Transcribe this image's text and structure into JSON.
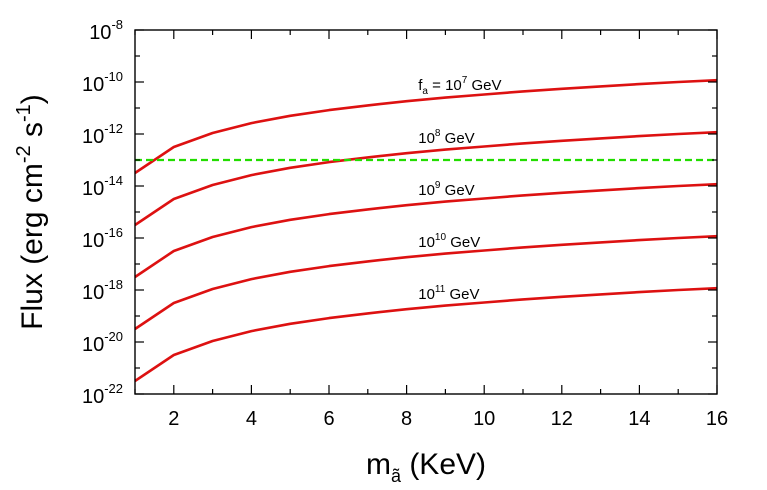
{
  "chart_data": {
    "type": "line",
    "title": "",
    "xlabel": "m",
    "xlabel_subscript": "ã",
    "xlabel_units": "(KeV)",
    "ylabel": "Flux (erg cm",
    "ylabel_exp1": "-2",
    "ylabel_mid": " s",
    "ylabel_exp2": "-1",
    "ylabel_end": ")",
    "xlim": [
      1,
      16
    ],
    "ylim_log10": [
      -22,
      -8
    ],
    "y_scale": "log",
    "grid": false,
    "x_ticks": [
      "2",
      "4",
      "6",
      "8",
      "10",
      "12",
      "14",
      "16"
    ],
    "x_tick_values": [
      2,
      4,
      6,
      8,
      10,
      12,
      14,
      16
    ],
    "y_ticks": [
      {
        "base": "10",
        "exp": "-8",
        "value": -8
      },
      {
        "base": "10",
        "exp": "-10",
        "value": -10
      },
      {
        "base": "10",
        "exp": "-12",
        "value": -12
      },
      {
        "base": "10",
        "exp": "-14",
        "value": -14
      },
      {
        "base": "10",
        "exp": "-16",
        "value": -16
      },
      {
        "base": "10",
        "exp": "-18",
        "value": -18
      },
      {
        "base": "10",
        "exp": "-20",
        "value": -20
      },
      {
        "base": "10",
        "exp": "-22",
        "value": -22
      }
    ],
    "x": [
      1,
      2,
      3,
      4,
      5,
      6,
      7,
      8,
      9,
      10,
      11,
      12,
      13,
      14,
      15,
      16
    ],
    "series": [
      {
        "label_prefix": "f",
        "label_sub": "a",
        "label_mid": " = 10",
        "label_exp": "7",
        "label_suffix": " GeV",
        "label_at_x": 8.3,
        "label_at_log10": -10.3,
        "color": "#dd1111",
        "log10_values": [
          -13.5,
          -12.5,
          -11.96,
          -11.58,
          -11.3,
          -11.08,
          -10.9,
          -10.74,
          -10.6,
          -10.48,
          -10.36,
          -10.26,
          -10.17,
          -10.08,
          -10.0,
          -9.93
        ]
      },
      {
        "label_prefix": "",
        "label_sub": "",
        "label_mid": "10",
        "label_exp": "8",
        "label_suffix": " GeV",
        "label_at_x": 8.3,
        "label_at_log10": -12.35,
        "color": "#dd1111",
        "log10_values": [
          -15.5,
          -14.5,
          -13.96,
          -13.58,
          -13.3,
          -13.08,
          -12.9,
          -12.74,
          -12.6,
          -12.48,
          -12.36,
          -12.26,
          -12.17,
          -12.08,
          -12.0,
          -11.93
        ]
      },
      {
        "label_prefix": "",
        "label_sub": "",
        "label_mid": "10",
        "label_exp": "9",
        "label_suffix": " GeV",
        "label_at_x": 8.3,
        "label_at_log10": -14.35,
        "color": "#dd1111",
        "log10_values": [
          -17.5,
          -16.5,
          -15.96,
          -15.58,
          -15.3,
          -15.08,
          -14.9,
          -14.74,
          -14.6,
          -14.48,
          -14.36,
          -14.26,
          -14.17,
          -14.08,
          -14.0,
          -13.93
        ]
      },
      {
        "label_prefix": "",
        "label_sub": "",
        "label_mid": "10",
        "label_exp": "10",
        "label_suffix": " GeV",
        "label_at_x": 8.3,
        "label_at_log10": -16.35,
        "color": "#dd1111",
        "log10_values": [
          -19.5,
          -18.5,
          -17.96,
          -17.58,
          -17.3,
          -17.08,
          -16.9,
          -16.74,
          -16.6,
          -16.48,
          -16.36,
          -16.26,
          -16.17,
          -16.08,
          -16.0,
          -15.93
        ]
      },
      {
        "label_prefix": "",
        "label_sub": "",
        "label_mid": "10",
        "label_exp": "11",
        "label_suffix": " GeV",
        "label_at_x": 8.3,
        "label_at_log10": -18.35,
        "color": "#dd1111",
        "log10_values": [
          -21.5,
          -20.5,
          -19.96,
          -19.58,
          -19.3,
          -19.08,
          -18.9,
          -18.74,
          -18.6,
          -18.48,
          -18.36,
          -18.26,
          -18.17,
          -18.08,
          -18.0,
          -17.93
        ]
      }
    ],
    "reference_line": {
      "log10_value": -13,
      "color": "#22dd00",
      "style": "dashed"
    }
  }
}
